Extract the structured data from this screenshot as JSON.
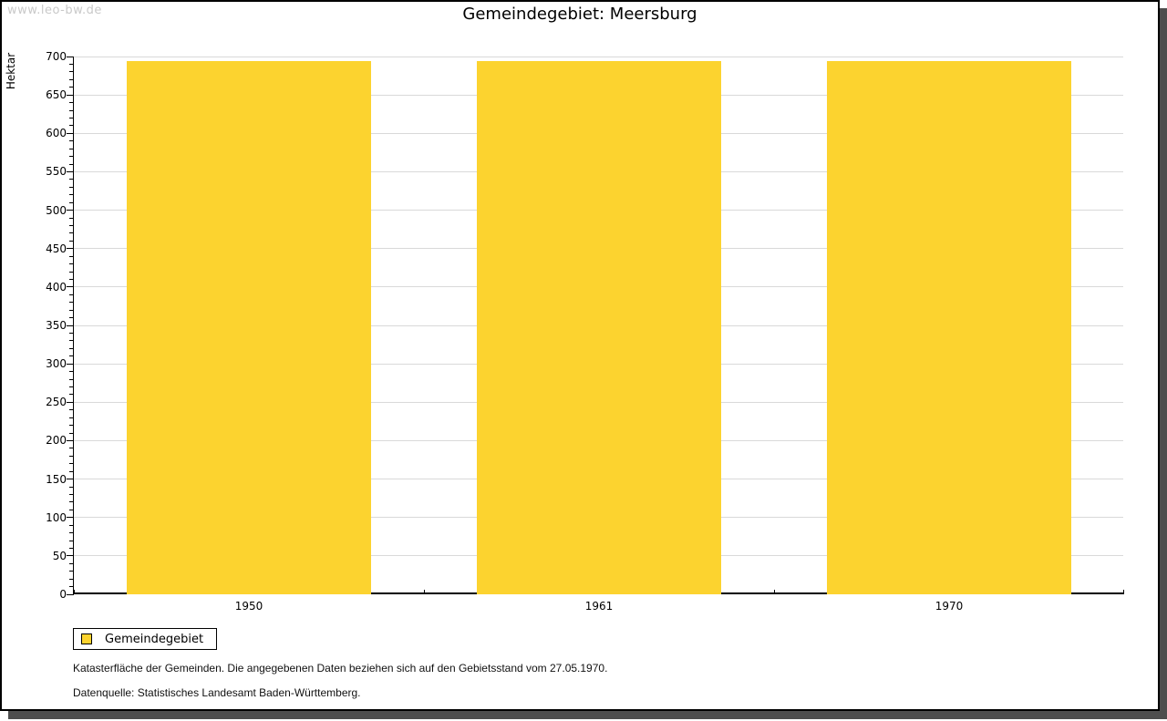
{
  "watermark": "www.leo-bw.de",
  "header": {
    "title": "Gemeindegebiet: Meersburg"
  },
  "chart_data": {
    "type": "bar",
    "title": "Gemeindegebiet: Meersburg",
    "categories": [
      "1950",
      "1961",
      "1970"
    ],
    "series": [
      {
        "name": "Gemeindegebiet",
        "values": [
          694,
          694,
          694
        ]
      }
    ],
    "xlabel": "",
    "ylabel": "Hektar",
    "ylim": [
      0,
      700
    ],
    "y_major_step": 50,
    "y_minor_step": 10,
    "grid": true,
    "legend_position": "bottom-left",
    "bar_color": "#FCD32F"
  },
  "legend": {
    "label": "Gemeindegebiet"
  },
  "footer": {
    "line1": "Katasterfläche der Gemeinden. Die angegebenen Daten beziehen sich auf den Gebietsstand vom 27.05.1970.",
    "line2": "Datenquelle: Statistisches Landesamt Baden-Württemberg."
  },
  "colors": {
    "bar": "#FCD32F",
    "grid": "#D9D9D9",
    "axis": "#000000",
    "watermark": "#C9C9C9",
    "shadow": "#4E4E4E"
  }
}
